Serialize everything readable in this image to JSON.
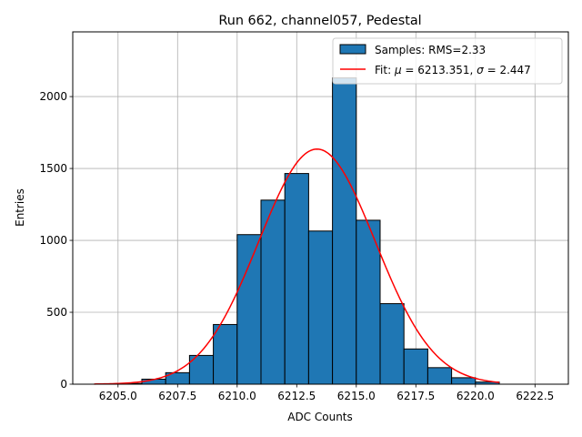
{
  "chart_data": {
    "type": "bar",
    "title": "Run 662, channel057, Pedestal",
    "xlabel": "ADC Counts",
    "ylabel": "Entries",
    "xlim": [
      6203.1,
      6223.9
    ],
    "ylim": [
      0,
      2450
    ],
    "xticks": [
      6205.0,
      6207.5,
      6210.0,
      6212.5,
      6215.0,
      6217.5,
      6220.0,
      6222.5
    ],
    "xtick_labels": [
      "6205.0",
      "6207.5",
      "6210.0",
      "6212.5",
      "6215.0",
      "6217.5",
      "6220.0",
      "6222.5"
    ],
    "yticks": [
      0,
      500,
      1000,
      1500,
      2000
    ],
    "ytick_labels": [
      "0",
      "500",
      "1000",
      "1500",
      "2000"
    ],
    "grid": true,
    "legend_position": "top-right",
    "histogram": {
      "name": "Samples: RMS=2.33",
      "bin_width": 1,
      "bin_edges_start": 6204,
      "values": [
        0,
        5,
        35,
        80,
        200,
        415,
        1040,
        1280,
        1465,
        1065,
        2130,
        1140,
        560,
        245,
        115,
        45,
        15,
        0
      ],
      "color": "#1f77b4",
      "edge_color": "#000000"
    },
    "fit": {
      "name_prefix": "Fit: ",
      "name_mu_value": " = 6213.351, ",
      "name_sigma_value": " = 2.447",
      "mu": 6213.351,
      "sigma": 2.447,
      "amplitude": 1635,
      "x_range": [
        6204,
        6221
      ],
      "color": "#ff0000"
    }
  }
}
